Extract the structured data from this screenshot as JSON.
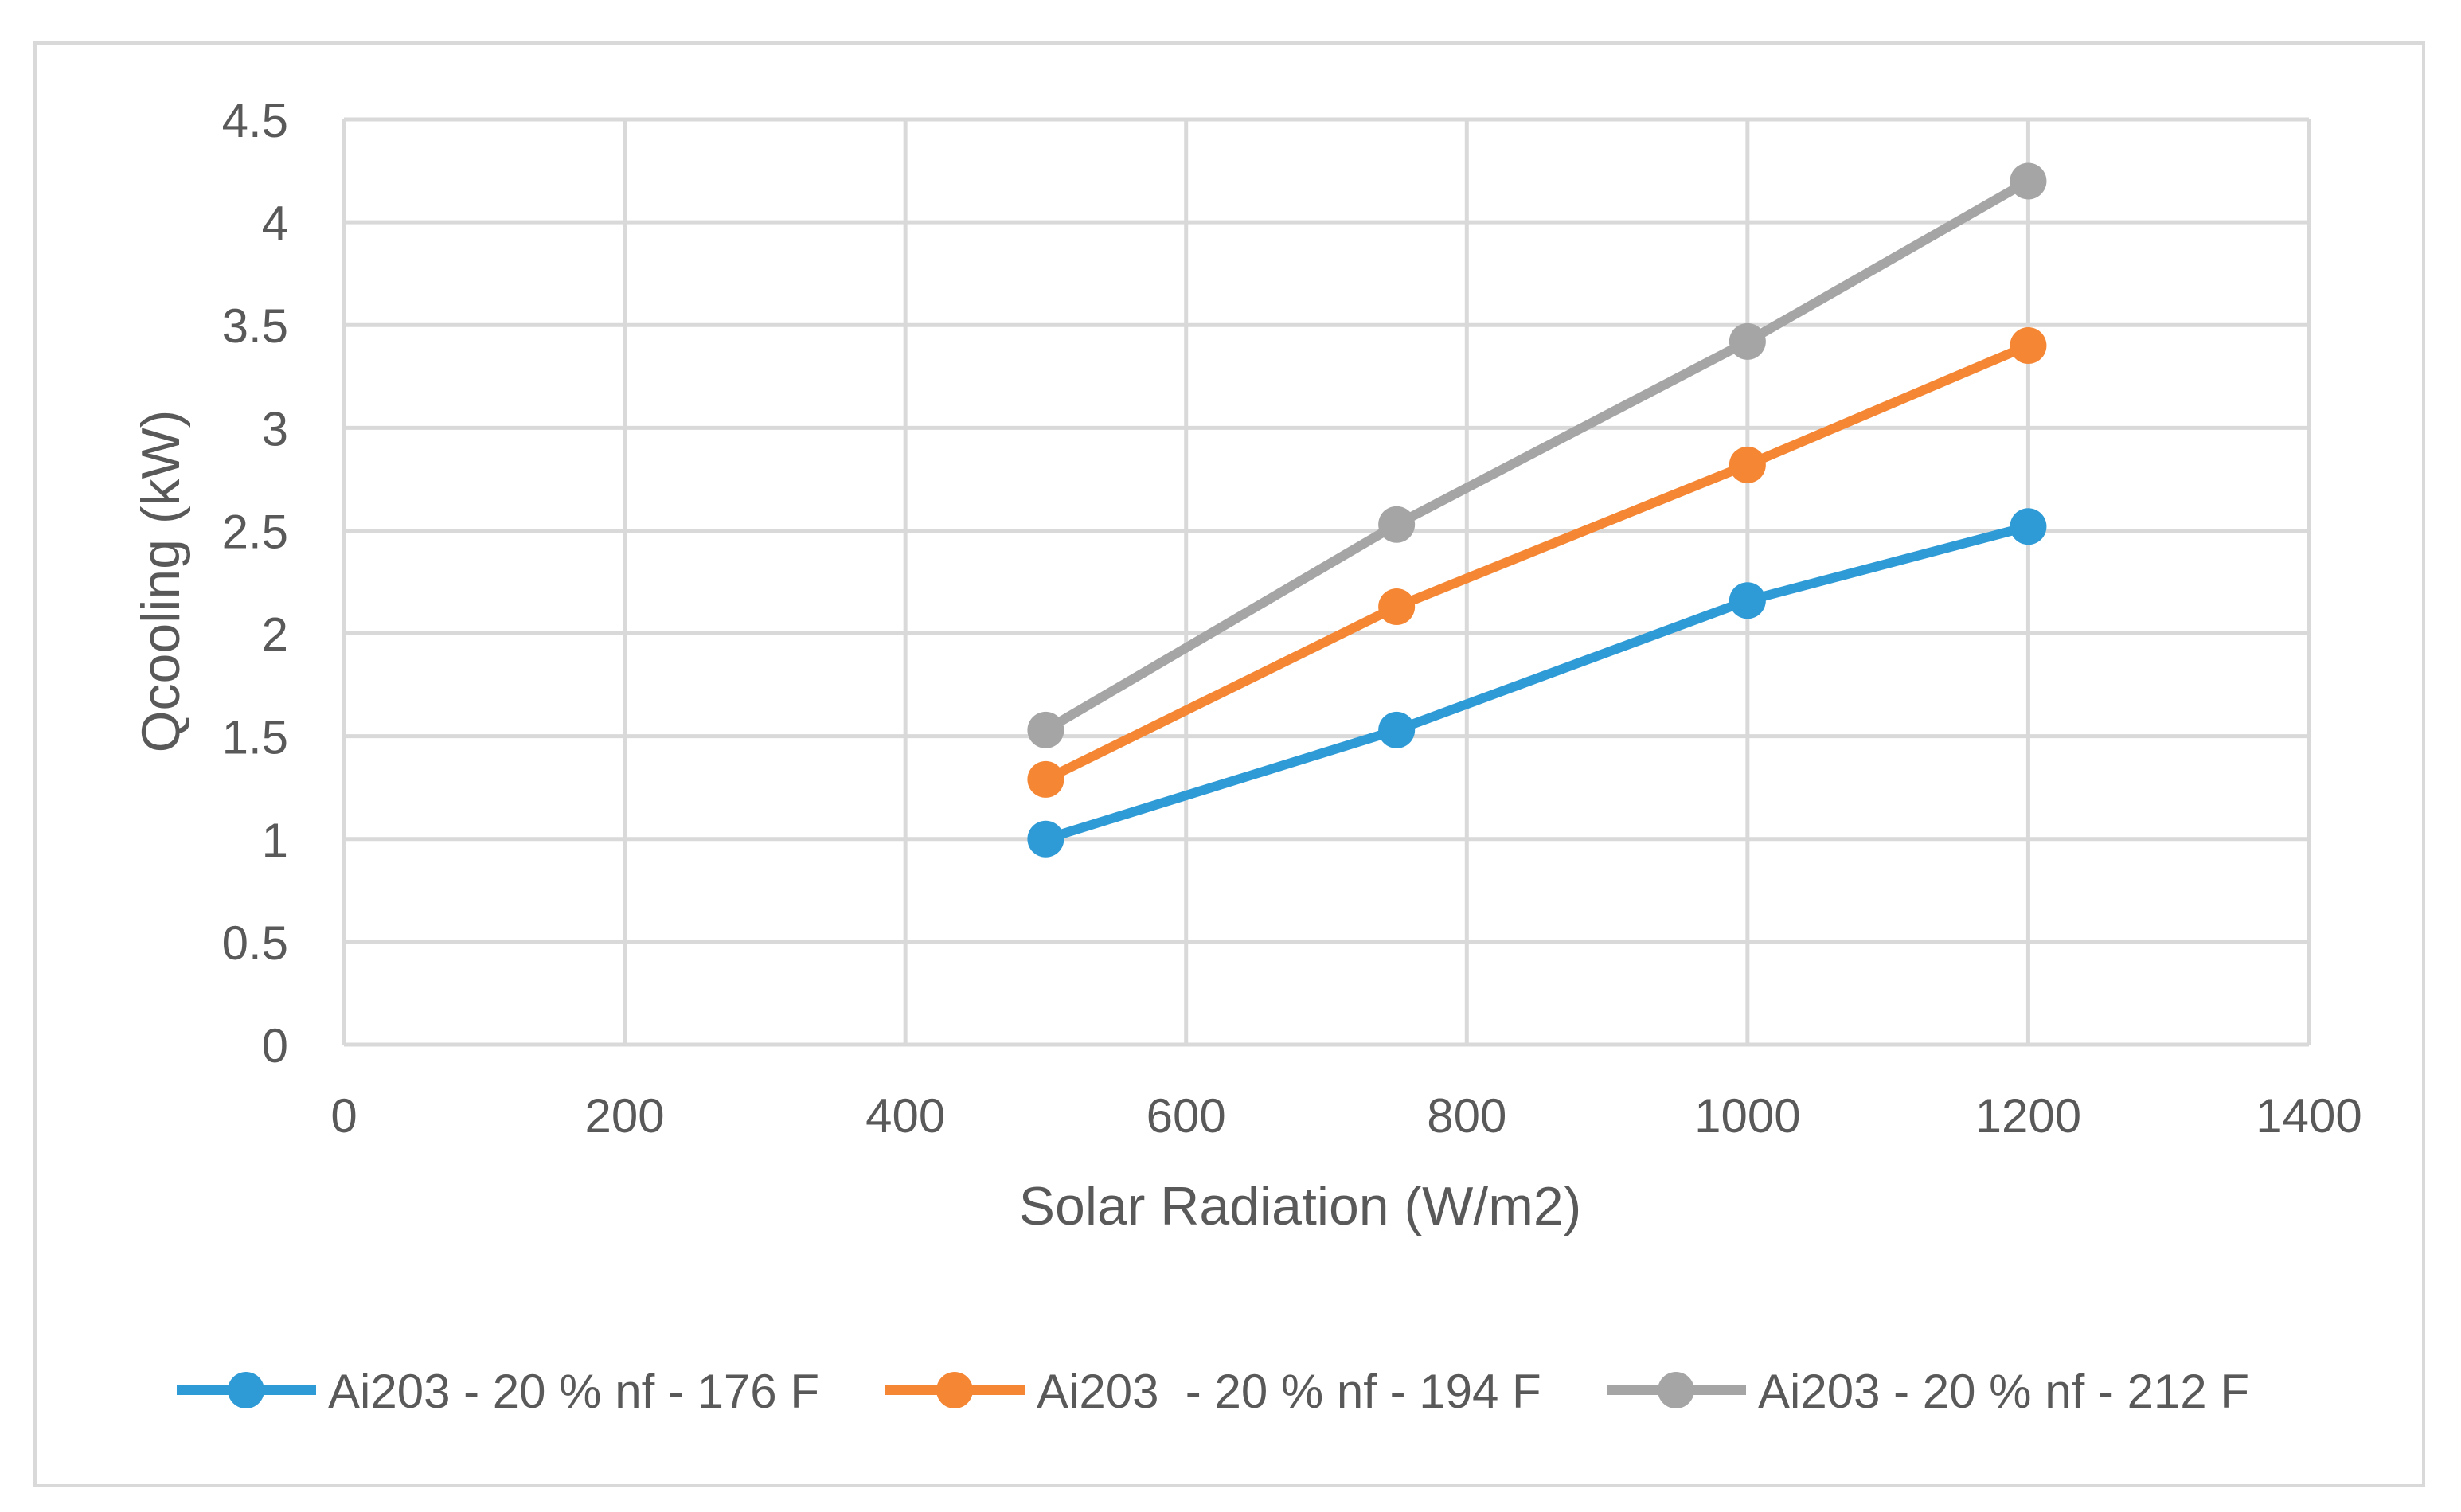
{
  "chart_data": {
    "type": "line",
    "title": "",
    "xlabel": "Solar Radiation (W/m2)",
    "ylabel": "Qcooling (kW)",
    "xlim": [
      0,
      1400
    ],
    "ylim": [
      0,
      4.5
    ],
    "x_ticks": [
      0,
      200,
      400,
      600,
      800,
      1000,
      1200,
      1400
    ],
    "y_ticks": [
      0,
      0.5,
      1,
      1.5,
      2,
      2.5,
      3,
      3.5,
      4,
      4.5
    ],
    "x_tick_labels": [
      "0",
      "200",
      "400",
      "600",
      "800",
      "1000",
      "1200",
      "1400"
    ],
    "y_tick_labels": [
      "0",
      "0.5",
      "1",
      "1.5",
      "2",
      "2.5",
      "3",
      "3.5",
      "4",
      "4.5"
    ],
    "grid": true,
    "legend_position": "bottom",
    "x": [
      500,
      750,
      1000,
      1200
    ],
    "series": [
      {
        "name": "Ai203 - 20 % nf - 176 F",
        "color": "#2E9BD6",
        "values": [
          1.0,
          1.53,
          2.16,
          2.52
        ]
      },
      {
        "name": "Ai203  - 20 % nf - 194 F",
        "color": "#F58634",
        "values": [
          1.29,
          2.13,
          2.82,
          3.4
        ]
      },
      {
        "name": "Ai203 - 20 % nf - 212 F",
        "color": "#A5A5A5",
        "values": [
          1.53,
          2.53,
          3.42,
          4.2
        ]
      }
    ]
  },
  "colors": {
    "grid": "#D9D9D9",
    "axis_text": "#595959",
    "frame": "#D9D9D9"
  }
}
